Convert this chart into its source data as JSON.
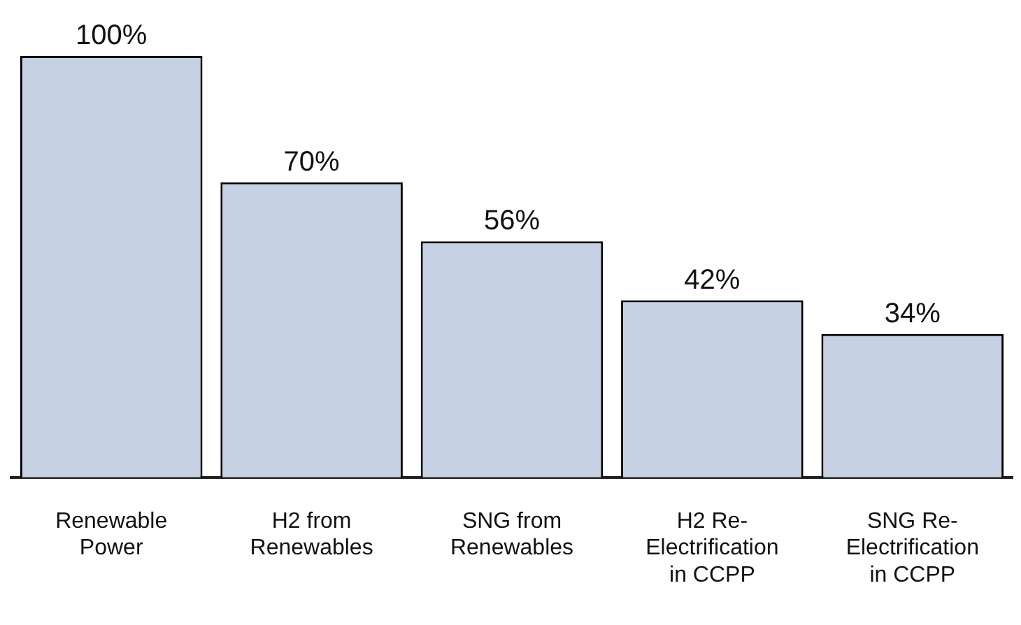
{
  "chart_data": {
    "type": "bar",
    "categories": [
      "Renewable Power",
      "H2 from Renewables",
      "SNG from Renewables",
      "H2 Re-Electrification in CCPP",
      "SNG Re-Electrification in CCPP"
    ],
    "values": [
      100,
      70,
      56,
      42,
      34
    ],
    "value_labels": [
      "100%",
      "70%",
      "56%",
      "42%",
      "34%"
    ],
    "color": "#c6d1e3",
    "grid": false,
    "legend": false
  }
}
